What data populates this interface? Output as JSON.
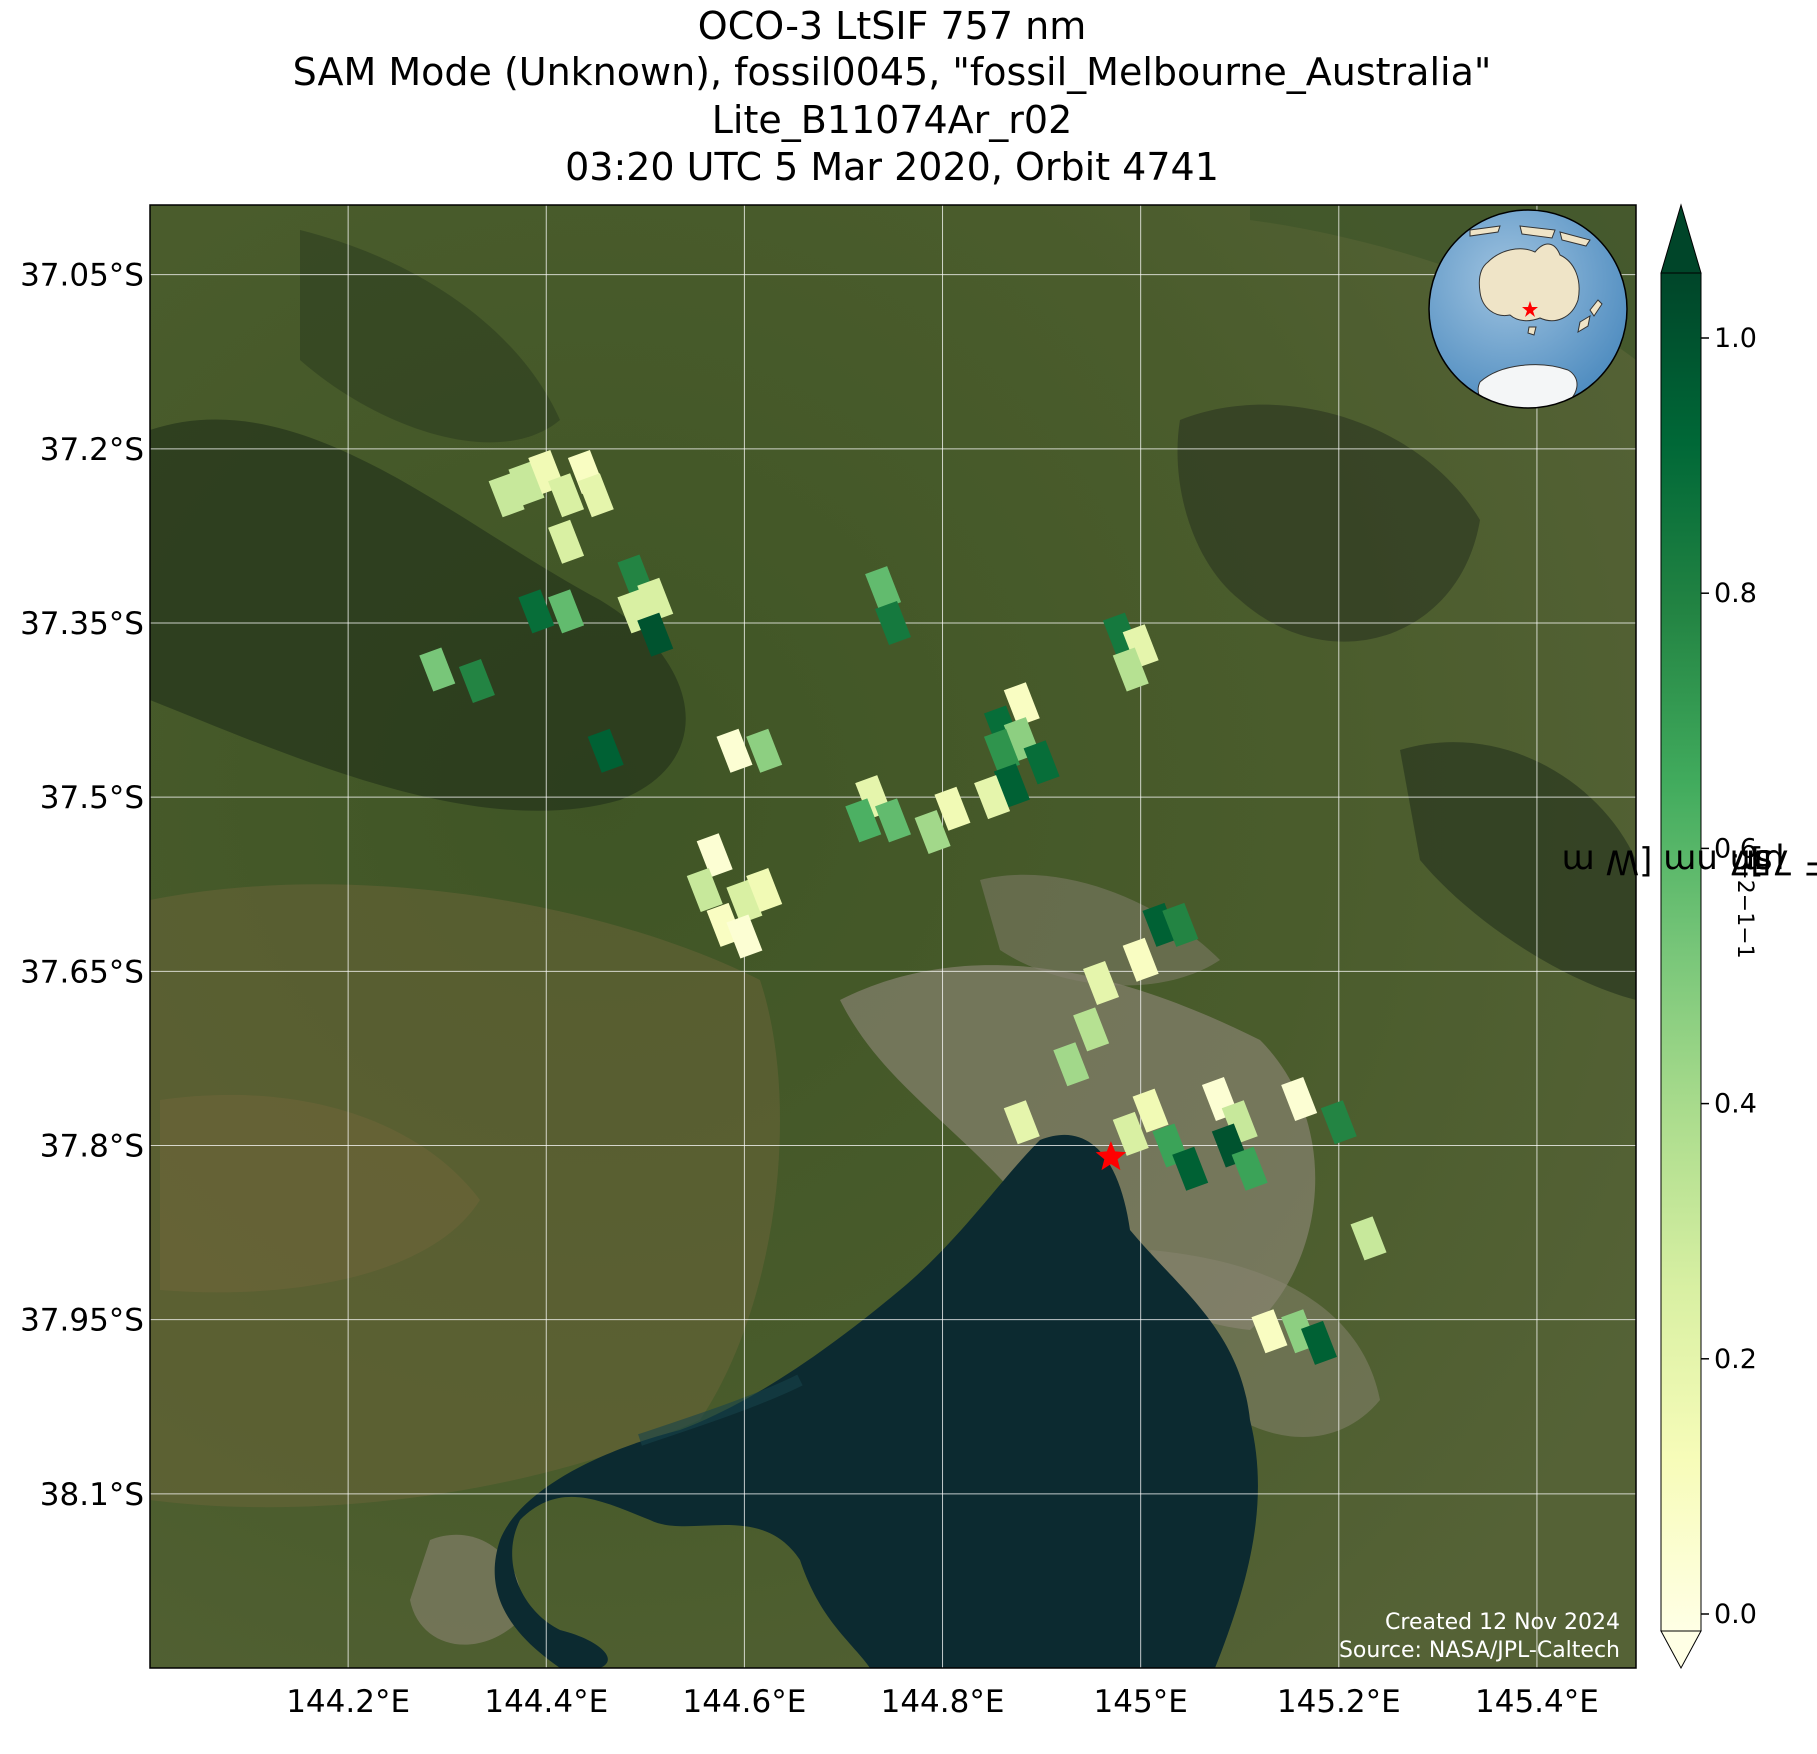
{
  "title": {
    "line1": "OCO-3 LtSIF 757 nm",
    "line2": "SAM Mode (Unknown), fossil0045, \"fossil_Melbourne_Australia\"",
    "line3": "Lite_B11074Ar_r02",
    "line4": "03:20 UTC 5 Mar 2020, Orbit 4741"
  },
  "map": {
    "lon_range": [
      144.0,
      145.5
    ],
    "lat_range": [
      -38.25,
      -36.99
    ],
    "lon_ticks": [
      {
        "value": 144.2,
        "label": "144.2°E"
      },
      {
        "value": 144.4,
        "label": "144.4°E"
      },
      {
        "value": 144.6,
        "label": "144.6°E"
      },
      {
        "value": 144.8,
        "label": "144.8°E"
      },
      {
        "value": 145.0,
        "label": "145°E"
      },
      {
        "value": 145.2,
        "label": "145.2°E"
      },
      {
        "value": 145.4,
        "label": "145.4°E"
      }
    ],
    "lat_ticks": [
      {
        "value": -37.05,
        "label": "37.05°S"
      },
      {
        "value": -37.2,
        "label": "37.2°S"
      },
      {
        "value": -37.35,
        "label": "37.35°S"
      },
      {
        "value": -37.5,
        "label": "37.5°S"
      },
      {
        "value": -37.65,
        "label": "37.65°S"
      },
      {
        "value": -37.8,
        "label": "37.8°S"
      },
      {
        "value": -37.95,
        "label": "37.95°S"
      },
      {
        "value": -38.1,
        "label": "38.1°S"
      }
    ],
    "grid": true,
    "target_marker": {
      "lon": 144.97,
      "lat": -37.81,
      "color": "#ff0000",
      "icon": "red-star-icon"
    },
    "credits": {
      "created": "Created 12 Nov 2024",
      "source": "Source: NASA/JPL-Caltech"
    },
    "inset_globe": {
      "icon": "globe-icon",
      "placement": "top-right",
      "marker": "red-star-icon"
    }
  },
  "colorbar": {
    "label_main": "Daily SIF 757 nm [W m",
    "label_exp1": "−2",
    "label_mid": " sr",
    "label_exp2": "−1",
    "label_mid2": "µm",
    "label_exp3": "−1",
    "label_end": "]",
    "range": [
      0.0,
      1.0
    ],
    "ticks": [
      {
        "value": 0.0,
        "label": "0.0"
      },
      {
        "value": 0.2,
        "label": "0.2"
      },
      {
        "value": 0.4,
        "label": "0.4"
      },
      {
        "value": 0.6,
        "label": "0.6"
      },
      {
        "value": 0.8,
        "label": "0.8"
      },
      {
        "value": 1.0,
        "label": "1.0"
      }
    ],
    "extend": "both",
    "colormap": "YlGn",
    "colors": [
      "#ffffe5",
      "#f7fcb9",
      "#d9f0a3",
      "#addd8e",
      "#78c679",
      "#41ab5d",
      "#238443",
      "#006837",
      "#004529"
    ]
  },
  "chart_data": {
    "type": "scatter",
    "variable": "Daily SIF 757 nm",
    "points": [
      {
        "lon": 144.38,
        "lat": -37.23,
        "value": 0.3
      },
      {
        "lon": 144.4,
        "lat": -37.22,
        "value": 0.15
      },
      {
        "lon": 144.42,
        "lat": -37.24,
        "value": 0.25
      },
      {
        "lon": 144.44,
        "lat": -37.22,
        "value": 0.1
      },
      {
        "lon": 144.45,
        "lat": -37.24,
        "value": 0.2
      },
      {
        "lon": 144.36,
        "lat": -37.24,
        "value": 0.3
      },
      {
        "lon": 144.42,
        "lat": -37.28,
        "value": 0.25
      },
      {
        "lon": 144.39,
        "lat": -37.34,
        "value": 0.85
      },
      {
        "lon": 144.42,
        "lat": -37.34,
        "value": 0.55
      },
      {
        "lon": 144.49,
        "lat": -37.31,
        "value": 0.75
      },
      {
        "lon": 144.51,
        "lat": -37.33,
        "value": 0.25
      },
      {
        "lon": 144.49,
        "lat": -37.34,
        "value": 0.25
      },
      {
        "lon": 144.51,
        "lat": -37.36,
        "value": 0.95
      },
      {
        "lon": 144.29,
        "lat": -37.39,
        "value": 0.5
      },
      {
        "lon": 144.33,
        "lat": -37.4,
        "value": 0.75
      },
      {
        "lon": 144.46,
        "lat": -37.46,
        "value": 0.9
      },
      {
        "lon": 144.59,
        "lat": -37.46,
        "value": 0.05
      },
      {
        "lon": 144.62,
        "lat": -37.46,
        "value": 0.45
      },
      {
        "lon": 144.74,
        "lat": -37.32,
        "value": 0.55
      },
      {
        "lon": 144.75,
        "lat": -37.35,
        "value": 0.8
      },
      {
        "lon": 144.98,
        "lat": -37.36,
        "value": 0.8
      },
      {
        "lon": 145.0,
        "lat": -37.37,
        "value": 0.2
      },
      {
        "lon": 144.99,
        "lat": -37.39,
        "value": 0.35
      },
      {
        "lon": 144.88,
        "lat": -37.42,
        "value": 0.1
      },
      {
        "lon": 144.86,
        "lat": -37.44,
        "value": 0.85
      },
      {
        "lon": 144.88,
        "lat": -37.45,
        "value": 0.45
      },
      {
        "lon": 144.86,
        "lat": -37.46,
        "value": 0.7
      },
      {
        "lon": 144.9,
        "lat": -37.47,
        "value": 0.85
      },
      {
        "lon": 144.87,
        "lat": -37.49,
        "value": 0.9
      },
      {
        "lon": 144.85,
        "lat": -37.5,
        "value": 0.2
      },
      {
        "lon": 144.73,
        "lat": -37.5,
        "value": 0.2
      },
      {
        "lon": 144.75,
        "lat": -37.52,
        "value": 0.55
      },
      {
        "lon": 144.72,
        "lat": -37.52,
        "value": 0.6
      },
      {
        "lon": 144.81,
        "lat": -37.51,
        "value": 0.15
      },
      {
        "lon": 144.79,
        "lat": -37.53,
        "value": 0.4
      },
      {
        "lon": 144.57,
        "lat": -37.55,
        "value": 0.05
      },
      {
        "lon": 144.56,
        "lat": -37.58,
        "value": 0.3
      },
      {
        "lon": 144.6,
        "lat": -37.59,
        "value": 0.25
      },
      {
        "lon": 144.62,
        "lat": -37.58,
        "value": 0.15
      },
      {
        "lon": 144.58,
        "lat": -37.61,
        "value": 0.1
      },
      {
        "lon": 144.6,
        "lat": -37.62,
        "value": 0.05
      },
      {
        "lon": 145.02,
        "lat": -37.61,
        "value": 0.9
      },
      {
        "lon": 145.04,
        "lat": -37.61,
        "value": 0.75
      },
      {
        "lon": 144.96,
        "lat": -37.66,
        "value": 0.2
      },
      {
        "lon": 145.0,
        "lat": -37.64,
        "value": 0.1
      },
      {
        "lon": 144.95,
        "lat": -37.7,
        "value": 0.35
      },
      {
        "lon": 144.93,
        "lat": -37.73,
        "value": 0.4
      },
      {
        "lon": 144.88,
        "lat": -37.78,
        "value": 0.2
      },
      {
        "lon": 145.01,
        "lat": -37.77,
        "value": 0.15
      },
      {
        "lon": 144.99,
        "lat": -37.79,
        "value": 0.25
      },
      {
        "lon": 145.03,
        "lat": -37.8,
        "value": 0.65
      },
      {
        "lon": 145.05,
        "lat": -37.82,
        "value": 0.9
      },
      {
        "lon": 145.08,
        "lat": -37.76,
        "value": 0.05
      },
      {
        "lon": 145.1,
        "lat": -37.78,
        "value": 0.3
      },
      {
        "lon": 145.09,
        "lat": -37.8,
        "value": 0.95
      },
      {
        "lon": 145.11,
        "lat": -37.82,
        "value": 0.65
      },
      {
        "lon": 145.16,
        "lat": -37.76,
        "value": 0.05
      },
      {
        "lon": 145.2,
        "lat": -37.78,
        "value": 0.75
      },
      {
        "lon": 145.23,
        "lat": -37.88,
        "value": 0.3
      },
      {
        "lon": 145.13,
        "lat": -37.96,
        "value": 0.1
      },
      {
        "lon": 145.16,
        "lat": -37.96,
        "value": 0.45
      },
      {
        "lon": 145.18,
        "lat": -37.97,
        "value": 0.9
      }
    ]
  }
}
